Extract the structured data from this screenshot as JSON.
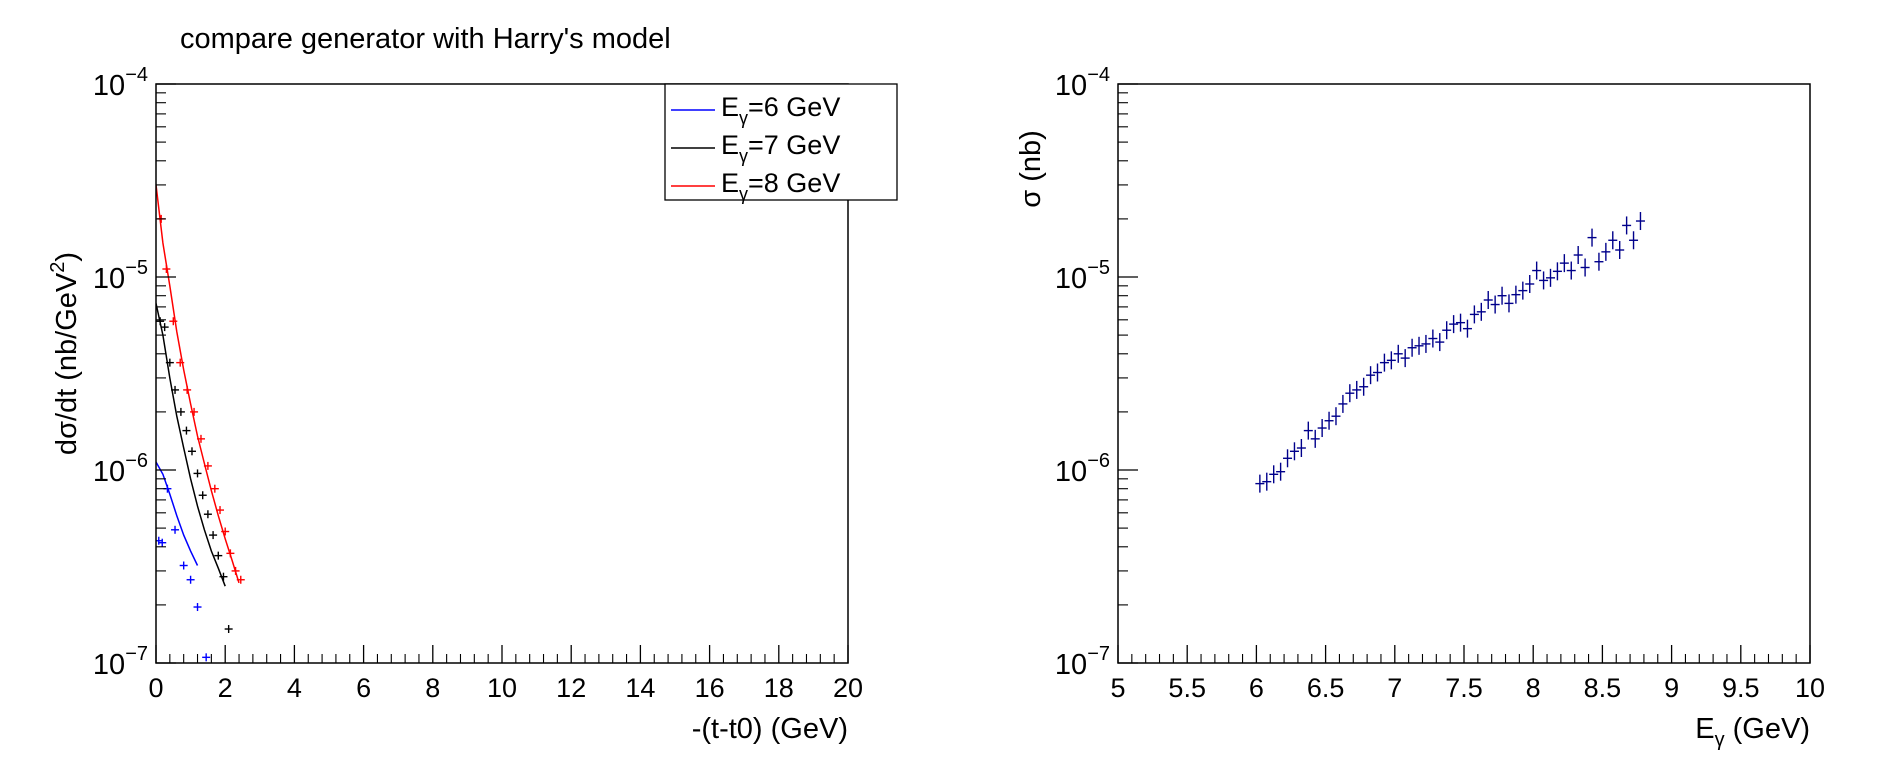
{
  "canvas_title": "compare generator with Harry's model",
  "chart_data": [
    {
      "type": "scatter",
      "log_y": true,
      "ylim": [
        1e-07,
        0.0001
      ],
      "xlim": [
        0,
        20
      ],
      "xlabel": "-(t-t0) (GeV)",
      "ylabel": "dσ/dt (nb/GeV",
      "ylabel_sup": "2",
      "ylabel_close": ")",
      "x_ticks": [
        0,
        2,
        4,
        6,
        8,
        10,
        12,
        14,
        16,
        18,
        20
      ],
      "y_ticks": [
        {
          "value": 1e-07,
          "exp": "−7"
        },
        {
          "value": 1e-06,
          "exp": "−6"
        },
        {
          "value": 1e-05,
          "exp": "−5"
        },
        {
          "value": 0.0001,
          "exp": "−4"
        }
      ],
      "legend": {
        "position": "top-right",
        "entries": [
          {
            "prefix": "E",
            "sub": "γ",
            "text": "=6 GeV",
            "color": "#0000ff"
          },
          {
            "prefix": "E",
            "sub": "γ",
            "text": "=7 GeV",
            "color": "#000000"
          },
          {
            "prefix": "E",
            "sub": "γ",
            "text": "=8 GeV",
            "color": "#ff0000"
          }
        ]
      },
      "series": [
        {
          "name": "E_γ=6 GeV",
          "color": "#0000ff",
          "line": {
            "x": [
              0.0,
              0.2,
              0.4,
              0.6,
              0.8,
              1.0,
              1.2
            ],
            "y": [
              1.1e-06,
              9.5e-07,
              7.5e-07,
              5.8e-07,
              4.6e-07,
              3.8e-07,
              3.2e-07
            ]
          },
          "points": {
            "x": [
              0.08,
              0.18,
              0.33,
              0.55,
              0.8,
              1.0,
              1.2,
              1.45
            ],
            "y": [
              4.3e-07,
              4.2e-07,
              8e-07,
              4.9e-07,
              3.2e-07,
              2.7e-07,
              1.95e-07,
              1.07e-07
            ]
          }
        },
        {
          "name": "E_γ=7 GeV",
          "color": "#000000",
          "line": {
            "x": [
              0.0,
              0.2,
              0.4,
              0.6,
              0.8,
              1.0,
              1.2,
              1.4,
              1.6,
              1.8,
              2.0
            ],
            "y": [
              7.3e-06,
              5e-06,
              3e-06,
              1.9e-06,
              1.3e-06,
              9e-07,
              6.5e-07,
              4.9e-07,
              3.8e-07,
              3.1e-07,
              2.5e-07
            ]
          },
          "points": {
            "x": [
              0.12,
              0.25,
              0.4,
              0.55,
              0.72,
              0.88,
              1.04,
              1.2,
              1.35,
              1.5,
              1.65,
              1.8,
              1.95,
              2.1
            ],
            "y": [
              5.9e-06,
              5.5e-06,
              3.6e-06,
              2.6e-06,
              2e-06,
              1.6e-06,
              1.25e-06,
              9.6e-07,
              7.4e-07,
              5.9e-07,
              4.6e-07,
              3.6e-07,
              2.8e-07,
              1.5e-07
            ]
          }
        },
        {
          "name": "E_γ=8 GeV",
          "color": "#ff0000",
          "line": {
            "x": [
              0.0,
              0.2,
              0.4,
              0.6,
              0.8,
              1.0,
              1.2,
              1.4,
              1.6,
              1.8,
              2.0,
              2.2,
              2.4
            ],
            "y": [
              3e-05,
              1.5e-05,
              9e-06,
              5.2e-06,
              3.3e-06,
              2.2e-06,
              1.5e-06,
              1.08e-06,
              7.8e-07,
              5.8e-07,
              4.4e-07,
              3.4e-07,
              2.6e-07
            ]
          },
          "points": {
            "x": [
              0.15,
              0.3,
              0.5,
              0.7,
              0.9,
              1.1,
              1.3,
              1.5,
              1.7,
              1.85,
              2.0,
              2.15,
              2.3,
              2.45
            ],
            "y": [
              2e-05,
              1.1e-05,
              5.9e-06,
              3.6e-06,
              2.6e-06,
              2e-06,
              1.45e-06,
              1.05e-06,
              8e-07,
              6.2e-07,
              4.8e-07,
              3.7e-07,
              3e-07,
              2.7e-07
            ]
          }
        }
      ]
    },
    {
      "type": "scatter",
      "log_y": true,
      "ylim": [
        1e-07,
        0.0001
      ],
      "xlim": [
        5,
        10
      ],
      "xlabel_prefix": "E",
      "xlabel_sub": "γ",
      "xlabel_rest": " (GeV)",
      "ylabel": "σ (nb)",
      "x_ticks": [
        5,
        5.5,
        6,
        6.5,
        7,
        7.5,
        8,
        8.5,
        9,
        9.5,
        10
      ],
      "y_ticks": [
        {
          "value": 1e-07,
          "exp": "−7"
        },
        {
          "value": 1e-06,
          "exp": "−6"
        },
        {
          "value": 1e-05,
          "exp": "−5"
        },
        {
          "value": 0.0001,
          "exp": "−4"
        }
      ],
      "series": [
        {
          "color": "#00008b",
          "points": {
            "x": [
              6.025,
              6.075,
              6.125,
              6.175,
              6.225,
              6.275,
              6.325,
              6.375,
              6.425,
              6.475,
              6.525,
              6.575,
              6.625,
              6.675,
              6.725,
              6.775,
              6.825,
              6.875,
              6.925,
              6.975,
              7.025,
              7.075,
              7.125,
              7.175,
              7.225,
              7.275,
              7.325,
              7.375,
              7.425,
              7.475,
              7.525,
              7.575,
              7.625,
              7.675,
              7.725,
              7.775,
              7.825,
              7.875,
              7.925,
              7.975,
              8.025,
              8.075,
              8.125,
              8.175,
              8.225,
              8.275,
              8.325,
              8.375,
              8.425,
              8.475,
              8.525,
              8.575,
              8.625,
              8.675,
              8.725,
              8.775
            ],
            "y": [
              8.5e-07,
              8.7e-07,
              9.5e-07,
              9.8e-07,
              1.15e-06,
              1.25e-06,
              1.3e-06,
              1.6e-06,
              1.45e-06,
              1.65e-06,
              1.8e-06,
              1.9e-06,
              2.2e-06,
              2.5e-06,
              2.6e-06,
              2.7e-06,
              3.1e-06,
              3.2e-06,
              3.6e-06,
              3.7e-06,
              4e-06,
              3.8e-06,
              4.3e-06,
              4.4e-06,
              4.5e-06,
              4.8e-06,
              4.6e-06,
              5.3e-06,
              5.7e-06,
              5.8e-06,
              5.4e-06,
              6.4e-06,
              6.6e-06,
              7.6e-06,
              7.2e-06,
              8e-06,
              7.3e-06,
              8.1e-06,
              8.5e-06,
              9.2e-06,
              1.08e-05,
              9.6e-06,
              9.9e-06,
              1.07e-05,
              1.18e-05,
              1.08e-05,
              1.3e-05,
              1.12e-05,
              1.6e-05,
              1.2e-05,
              1.35e-05,
              1.55e-05,
              1.38e-05,
              1.85e-05,
              1.55e-05,
              1.95e-05
            ]
          }
        }
      ]
    }
  ]
}
